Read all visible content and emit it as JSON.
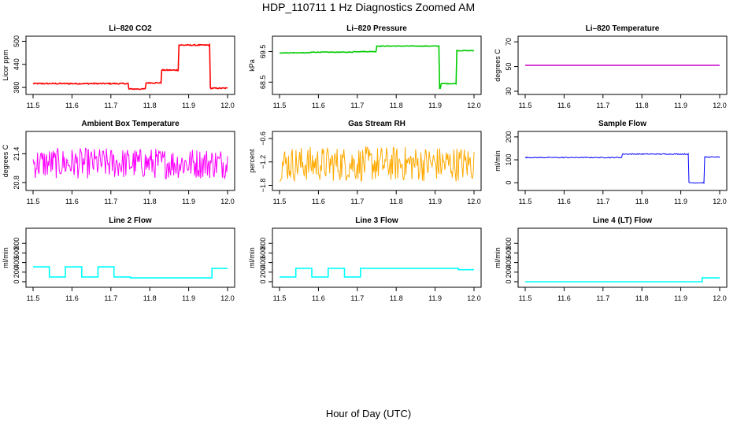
{
  "figure": {
    "title": "HDP_110711  1 Hz Diagnostics Zoomed AM",
    "xlabel": "Hour of Day (UTC)"
  },
  "chart_data": [
    {
      "type": "line",
      "title": "Li–820 CO2",
      "ylabel": "Licor ppm",
      "color": "#ff0000",
      "xlim": [
        11.5,
        12.0
      ],
      "ylim": [
        370,
        505
      ],
      "xticks": [
        11.5,
        11.6,
        11.7,
        11.8,
        11.9,
        12.0
      ],
      "yticks": [
        380,
        440,
        500
      ],
      "steps": [
        [
          11.5,
          390
        ],
        [
          11.745,
          376
        ],
        [
          11.79,
          392
        ],
        [
          11.83,
          425
        ],
        [
          11.875,
          490
        ],
        [
          11.955,
          378
        ],
        [
          12.0,
          378
        ]
      ],
      "noise": 1.5
    },
    {
      "type": "line",
      "title": "Li–820 Pressure",
      "ylabel": "kPa",
      "color": "#00cc00",
      "xlim": [
        11.5,
        12.0
      ],
      "ylim": [
        68.2,
        69.9
      ],
      "xticks": [
        11.5,
        11.6,
        11.7,
        11.8,
        11.9,
        12.0
      ],
      "yticks": [
        68.5,
        69.5
      ],
      "steps": [
        [
          11.5,
          69.46
        ],
        [
          11.58,
          69.48
        ],
        [
          11.69,
          69.5
        ],
        [
          11.75,
          69.68
        ],
        [
          11.91,
          68.3
        ],
        [
          11.915,
          68.45
        ],
        [
          11.955,
          69.53
        ],
        [
          12.0,
          69.53
        ]
      ],
      "noise": 0.01
    },
    {
      "type": "line",
      "title": "Li–820 Temperature",
      "ylabel": "degrees C",
      "color": "#cc00cc",
      "xlim": [
        11.5,
        12.0
      ],
      "ylim": [
        30,
        72
      ],
      "xticks": [
        11.5,
        11.6,
        11.7,
        11.8,
        11.9,
        12.0
      ],
      "yticks": [
        30,
        50,
        70
      ],
      "steps": [
        [
          11.5,
          51
        ],
        [
          12.0,
          51
        ]
      ],
      "noise": 0
    },
    {
      "type": "line",
      "title": "Ambient Box Temperature",
      "ylabel": "degrees C",
      "color": "#ff00ff",
      "xlim": [
        11.5,
        12.0
      ],
      "ylim": [
        20.7,
        21.8
      ],
      "xticks": [
        11.5,
        11.6,
        11.7,
        11.8,
        11.9,
        12.0
      ],
      "yticks": [
        20.8,
        21.4
      ],
      "steps": [
        [
          11.5,
          21.2
        ],
        [
          12.0,
          21.2
        ]
      ],
      "noise": 0.32
    },
    {
      "type": "line",
      "title": "Gas Stream RH",
      "ylabel": "percent",
      "color": "#ffaa00",
      "xlim": [
        11.5,
        12.0
      ],
      "ylim": [
        -1.85,
        -0.5
      ],
      "xticks": [
        11.5,
        11.6,
        11.7,
        11.8,
        11.9,
        12.0
      ],
      "yticks": [
        -1.8,
        -1.2,
        -0.6
      ],
      "steps": [
        [
          11.5,
          -1.25
        ],
        [
          12.0,
          -1.25
        ]
      ],
      "noise": 0.45
    },
    {
      "type": "line",
      "title": "Sample Flow",
      "ylabel": "ml/min",
      "color": "#0000ff",
      "xlim": [
        11.5,
        12.0
      ],
      "ylim": [
        -20,
        210
      ],
      "xticks": [
        11.5,
        11.6,
        11.7,
        11.8,
        11.9,
        12.0
      ],
      "yticks": [
        0,
        100,
        200
      ],
      "steps": [
        [
          11.5,
          110
        ],
        [
          11.75,
          125
        ],
        [
          11.92,
          0
        ],
        [
          11.96,
          112
        ],
        [
          12.0,
          112
        ]
      ],
      "noise": 2
    },
    {
      "type": "line",
      "title": "Line 2 Flow",
      "ylabel": "ml/min",
      "color": "#00ffff",
      "xlim": [
        11.5,
        12.0
      ],
      "ylim": [
        -50,
        1050
      ],
      "xticks": [
        11.5,
        11.6,
        11.7,
        11.8,
        11.9,
        12.0
      ],
      "yticks": [
        0,
        200,
        400,
        600,
        800
      ],
      "steps": [
        [
          11.5,
          310
        ],
        [
          11.542,
          100
        ],
        [
          11.583,
          310
        ],
        [
          11.625,
          100
        ],
        [
          11.667,
          310
        ],
        [
          11.708,
          100
        ],
        [
          11.75,
          80
        ],
        [
          11.96,
          280
        ],
        [
          12.0,
          280
        ]
      ],
      "noise": 0
    },
    {
      "type": "line",
      "title": "Line 3 Flow",
      "ylabel": "ml/min",
      "color": "#00ffff",
      "xlim": [
        11.5,
        12.0
      ],
      "ylim": [
        -50,
        1050
      ],
      "xticks": [
        11.5,
        11.6,
        11.7,
        11.8,
        11.9,
        12.0
      ],
      "yticks": [
        0,
        200,
        400,
        600,
        800
      ],
      "steps": [
        [
          11.5,
          100
        ],
        [
          11.542,
          280
        ],
        [
          11.583,
          100
        ],
        [
          11.625,
          280
        ],
        [
          11.667,
          100
        ],
        [
          11.708,
          280
        ],
        [
          11.96,
          250
        ],
        [
          12.0,
          250
        ]
      ],
      "noise": 0
    },
    {
      "type": "line",
      "title": "Line 4 (LT) Flow",
      "ylabel": "ml/min",
      "color": "#00ffff",
      "xlim": [
        11.5,
        12.0
      ],
      "ylim": [
        -50,
        1050
      ],
      "xticks": [
        11.5,
        11.6,
        11.7,
        11.8,
        11.9,
        12.0
      ],
      "yticks": [
        0,
        200,
        400,
        600,
        800
      ],
      "steps": [
        [
          11.5,
          0
        ],
        [
          11.955,
          80
        ],
        [
          12.0,
          80
        ]
      ],
      "noise": 0
    }
  ]
}
